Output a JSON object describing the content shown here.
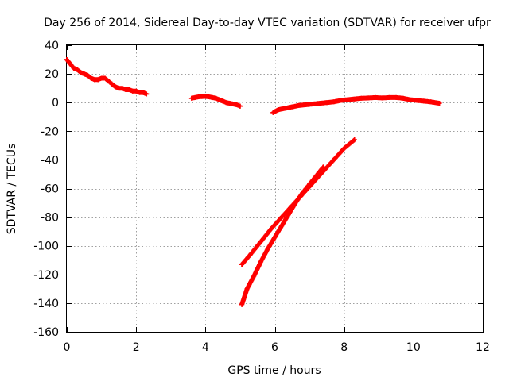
{
  "chart_data": {
    "type": "scatter",
    "title": "Day 256 of 2014, Sidereal Day-to-day VTEC variation (SDTVAR) for receiver ufpr",
    "xlabel": "GPS time / hours",
    "ylabel": "SDTVAR / TECUs",
    "xlim": [
      0,
      12
    ],
    "ylim": [
      -160,
      40
    ],
    "x_ticks": [
      0,
      2,
      4,
      6,
      8,
      10,
      12
    ],
    "y_ticks": [
      40,
      20,
      0,
      -20,
      -40,
      -60,
      -80,
      -100,
      -120,
      -140,
      -160
    ],
    "grid": true,
    "legend": "none",
    "marker": "plus",
    "color": "#ff0000",
    "series": [
      {
        "x": [
          0.0,
          0.1,
          0.2,
          0.3,
          0.4,
          0.5,
          0.6,
          0.7,
          0.8,
          0.9,
          1.0,
          1.1,
          1.2,
          1.3,
          1.4,
          1.5,
          1.6,
          1.7,
          1.8,
          1.9,
          2.0,
          2.1,
          2.2,
          2.3
        ],
        "y": [
          30,
          27,
          24,
          23,
          21,
          20,
          19,
          17,
          16,
          16,
          17,
          17,
          15,
          13,
          11,
          10,
          10,
          9,
          9,
          8,
          8,
          7,
          7,
          6
        ]
      },
      {
        "x": [
          3.6,
          3.7,
          3.8,
          3.9,
          4.0,
          4.1,
          4.2,
          4.3,
          4.4,
          4.5,
          4.6,
          4.7,
          4.8,
          4.9,
          5.0
        ],
        "y": [
          3,
          3.5,
          4,
          4.2,
          4.3,
          4,
          3.5,
          3,
          2,
          1,
          0,
          -0.5,
          -1,
          -1.5,
          -2.5
        ]
      },
      {
        "x": [
          5.95,
          6.1,
          6.3,
          6.5,
          6.7,
          6.9,
          7.1,
          7.3,
          7.5,
          7.7,
          7.9,
          8.1,
          8.3,
          8.5,
          8.7,
          8.9,
          9.1,
          9.3,
          9.5,
          9.7,
          9.9,
          10.1,
          10.3,
          10.5,
          10.75
        ],
        "y": [
          -7,
          -5,
          -4,
          -3,
          -2,
          -1.5,
          -1,
          -0.5,
          0,
          0.5,
          1.5,
          2,
          2.5,
          3,
          3.2,
          3.5,
          3.2,
          3.5,
          3.5,
          3,
          2,
          1.5,
          1,
          0.5,
          -0.5
        ]
      },
      {
        "x": [
          5.05,
          5.3,
          5.6,
          5.9,
          6.2,
          6.5,
          6.8,
          7.1,
          7.4,
          7.7,
          8.0,
          8.3
        ],
        "y": [
          -113,
          -106,
          -97,
          -88,
          -80,
          -72,
          -64,
          -56,
          -48,
          -40,
          -32,
          -26
        ]
      },
      {
        "x": [
          5.05,
          5.2,
          5.4,
          5.6,
          5.8,
          6.0,
          6.2,
          6.4,
          6.6,
          6.8,
          7.0,
          7.2,
          7.4
        ],
        "y": [
          -141,
          -130,
          -121,
          -111,
          -102,
          -94,
          -86,
          -78,
          -70,
          -63,
          -57,
          -51,
          -45
        ]
      }
    ]
  }
}
